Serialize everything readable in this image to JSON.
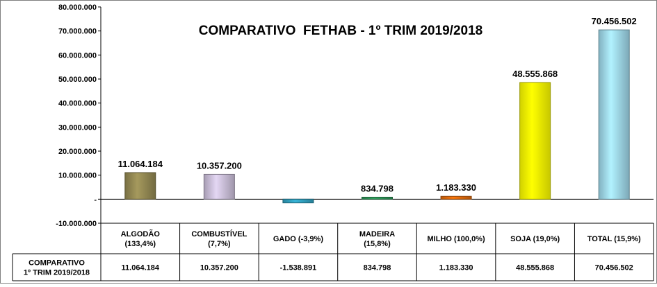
{
  "chart_data": {
    "type": "bar",
    "title": "COMPARATIVO  FETHAB - 1º TRIM 2019/2018",
    "xlabel": "",
    "ylabel": "",
    "ylim": [
      -10000000,
      80000000
    ],
    "yticks": [
      80000000,
      70000000,
      60000000,
      50000000,
      40000000,
      30000000,
      20000000,
      10000000,
      0,
      -10000000
    ],
    "ytick_labels": [
      "80.000.000",
      "70.000.000",
      "60.000.000",
      "50.000.000",
      "40.000.000",
      "30.000.000",
      "20.000.000",
      "10.000.000",
      "-",
      "-10.000.000"
    ],
    "categories": [
      "ALGODÃO (133,4%)",
      "COMBUSTÍVEL (7,7%)",
      "GADO (-3,9%)",
      "MADEIRA (15,8%)",
      "MILHO (100,0%)",
      "SOJA (19,0%)",
      "TOTAL (15,9%)"
    ],
    "category_lines": [
      [
        "ALGODÃO",
        "(133,4%)"
      ],
      [
        "COMBUSTÍVEL",
        "(7,7%)"
      ],
      [
        "GADO (-3,9%)"
      ],
      [
        "MADEIRA",
        "(15,8%)"
      ],
      [
        "MILHO (100,0%)"
      ],
      [
        "SOJA (19,0%)"
      ],
      [
        "TOTAL (15,9%)"
      ]
    ],
    "series": [
      {
        "name": "COMPARATIVO 1º TRIM 2019/2018",
        "name_lines": [
          "COMPARATIVO",
          "1º TRIM 2019/2018"
        ],
        "values": [
          11064184,
          10357200,
          -1538891,
          834798,
          1183330,
          48555868,
          70456502
        ],
        "value_labels": [
          "11.064.184",
          "10.357.200",
          "-1.538.891",
          "834.798",
          "1.183.330",
          "48.555.868",
          "70.456.502"
        ],
        "bar_labels": [
          "11.064.184",
          "10.357.200",
          "",
          "834.798",
          "1.183.330",
          "48.555.868",
          "70.456.502"
        ],
        "colors": [
          "#938953",
          "#ccc0da",
          "#31a1c0",
          "#2e9a5a",
          "#e26b0a",
          "#ffff00",
          "#9fd8ea"
        ]
      }
    ],
    "legend": "data-table-below",
    "grid": false
  }
}
